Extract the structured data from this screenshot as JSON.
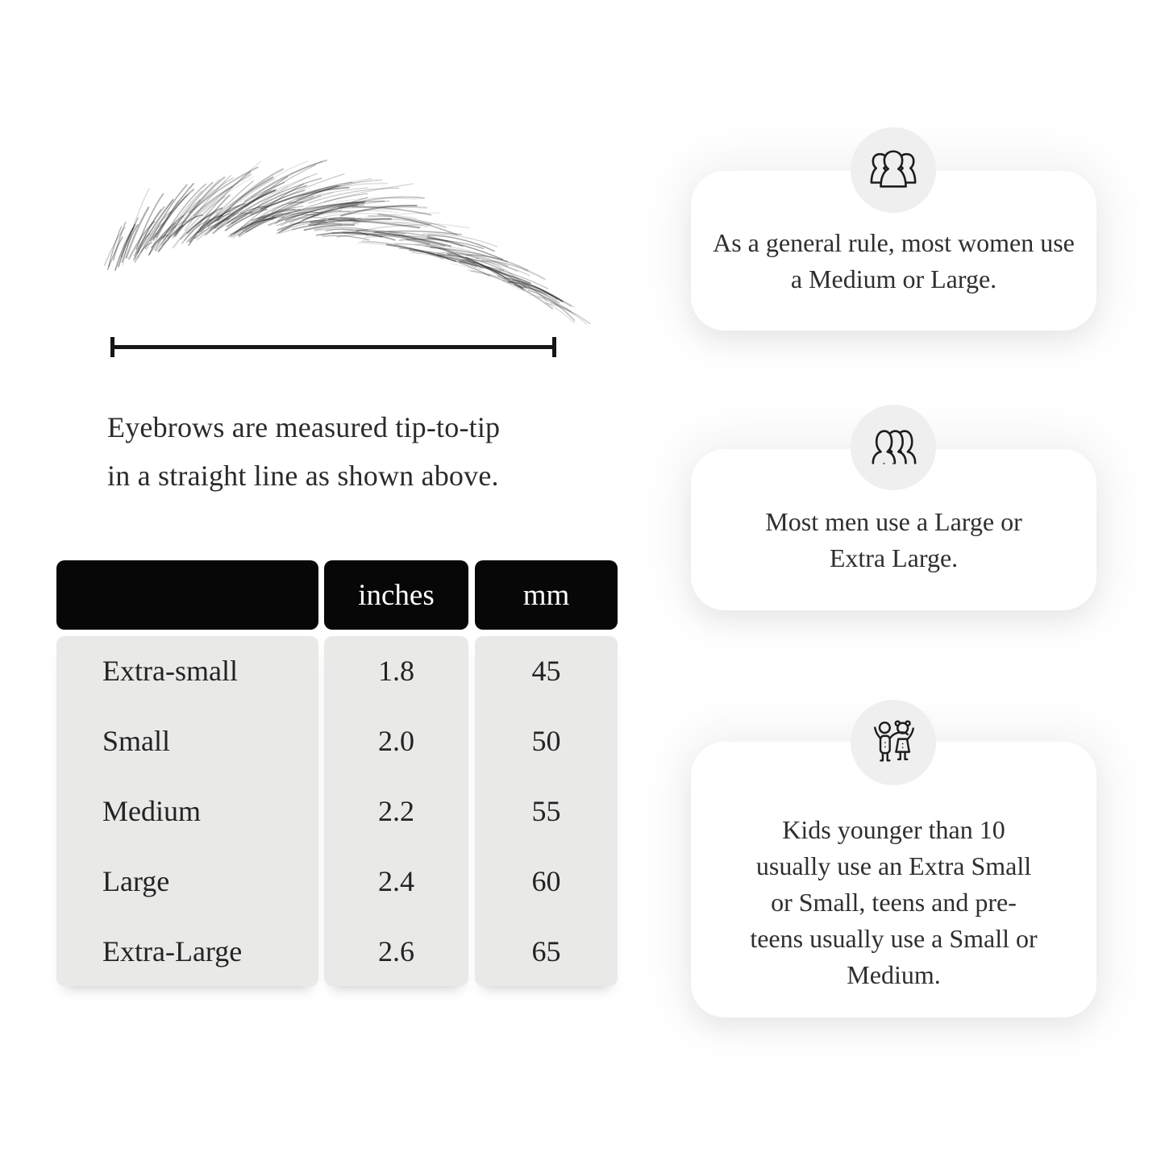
{
  "diagram": {
    "caption_line1": "Eyebrows are measured tip-to-tip",
    "caption_line2": "in a straight line as shown above."
  },
  "size_table": {
    "headers": {
      "size": "",
      "inches": "inches",
      "mm": "mm"
    },
    "rows": [
      {
        "label": "Extra-small",
        "inches": "1.8",
        "mm": "45"
      },
      {
        "label": "Small",
        "inches": "2.0",
        "mm": "50"
      },
      {
        "label": "Medium",
        "inches": "2.2",
        "mm": "55"
      },
      {
        "label": "Large",
        "inches": "2.4",
        "mm": "60"
      },
      {
        "label": "Extra-Large",
        "inches": "2.6",
        "mm": "65"
      }
    ]
  },
  "cards": [
    {
      "icon": "women-group-icon",
      "text": "As a general rule, most women use a Medium or Large."
    },
    {
      "icon": "men-group-icon",
      "text": "Most men use a Large or Extra Large."
    },
    {
      "icon": "kids-icon",
      "text": "Kids younger than 10 usually use an Extra Small or Small, teens and pre-teens usually use a Small or Medium."
    }
  ],
  "colors": {
    "table_header_bg": "#070707",
    "table_header_text": "#ffffff",
    "table_body_bg": "#e9e9e8",
    "icon_circle_bg": "#efefef",
    "icon_stroke": "#1d1d1d",
    "text": "#2b2b2b",
    "measure_line": "#161616"
  }
}
